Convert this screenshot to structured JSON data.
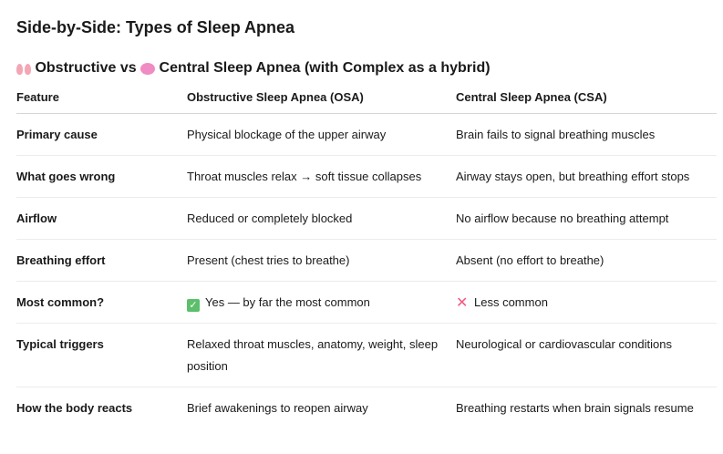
{
  "title": "Side-by-Side: Types of Sleep Apnea",
  "subtitle": {
    "icon1": "lungs-emoji",
    "part1": "Obstructive vs",
    "icon2": "brain-emoji",
    "part2": "Central Sleep Apnea (with Complex as a hybrid)"
  },
  "table": {
    "headers": [
      "Feature",
      "Obstructive Sleep Apnea (OSA)",
      "Central Sleep Apnea (CSA)"
    ],
    "rows": [
      {
        "feature": "Primary cause",
        "osa": "Physical blockage of the upper airway",
        "csa": "Brain fails to signal breathing muscles"
      },
      {
        "feature": "What goes wrong",
        "osa": "Throat muscles relax → soft tissue collapses",
        "csa": "Airway stays open, but breathing effort stops"
      },
      {
        "feature": "Airflow",
        "osa": "Reduced or completely blocked",
        "csa": "No airflow because no breathing attempt"
      },
      {
        "feature": "Breathing effort",
        "osa": "Present (chest tries to breathe)",
        "csa": "Absent (no effort to breathe)"
      },
      {
        "feature": "Most common?",
        "osa": "Yes — by far the most common",
        "csa": "Less common",
        "osa_icon": "check-mark-emoji",
        "csa_icon": "cross-mark-emoji"
      },
      {
        "feature": "Typical triggers",
        "osa": "Relaxed throat muscles, anatomy, weight, sleep position",
        "csa": "Neurological or cardiovascular conditions"
      },
      {
        "feature": "How the body reacts",
        "osa": "Brief awakenings to reopen airway",
        "csa": "Breathing restarts when brain signals resume"
      }
    ]
  },
  "colors": {
    "check": "#5cbf6b",
    "cross": "#f05a7e"
  }
}
